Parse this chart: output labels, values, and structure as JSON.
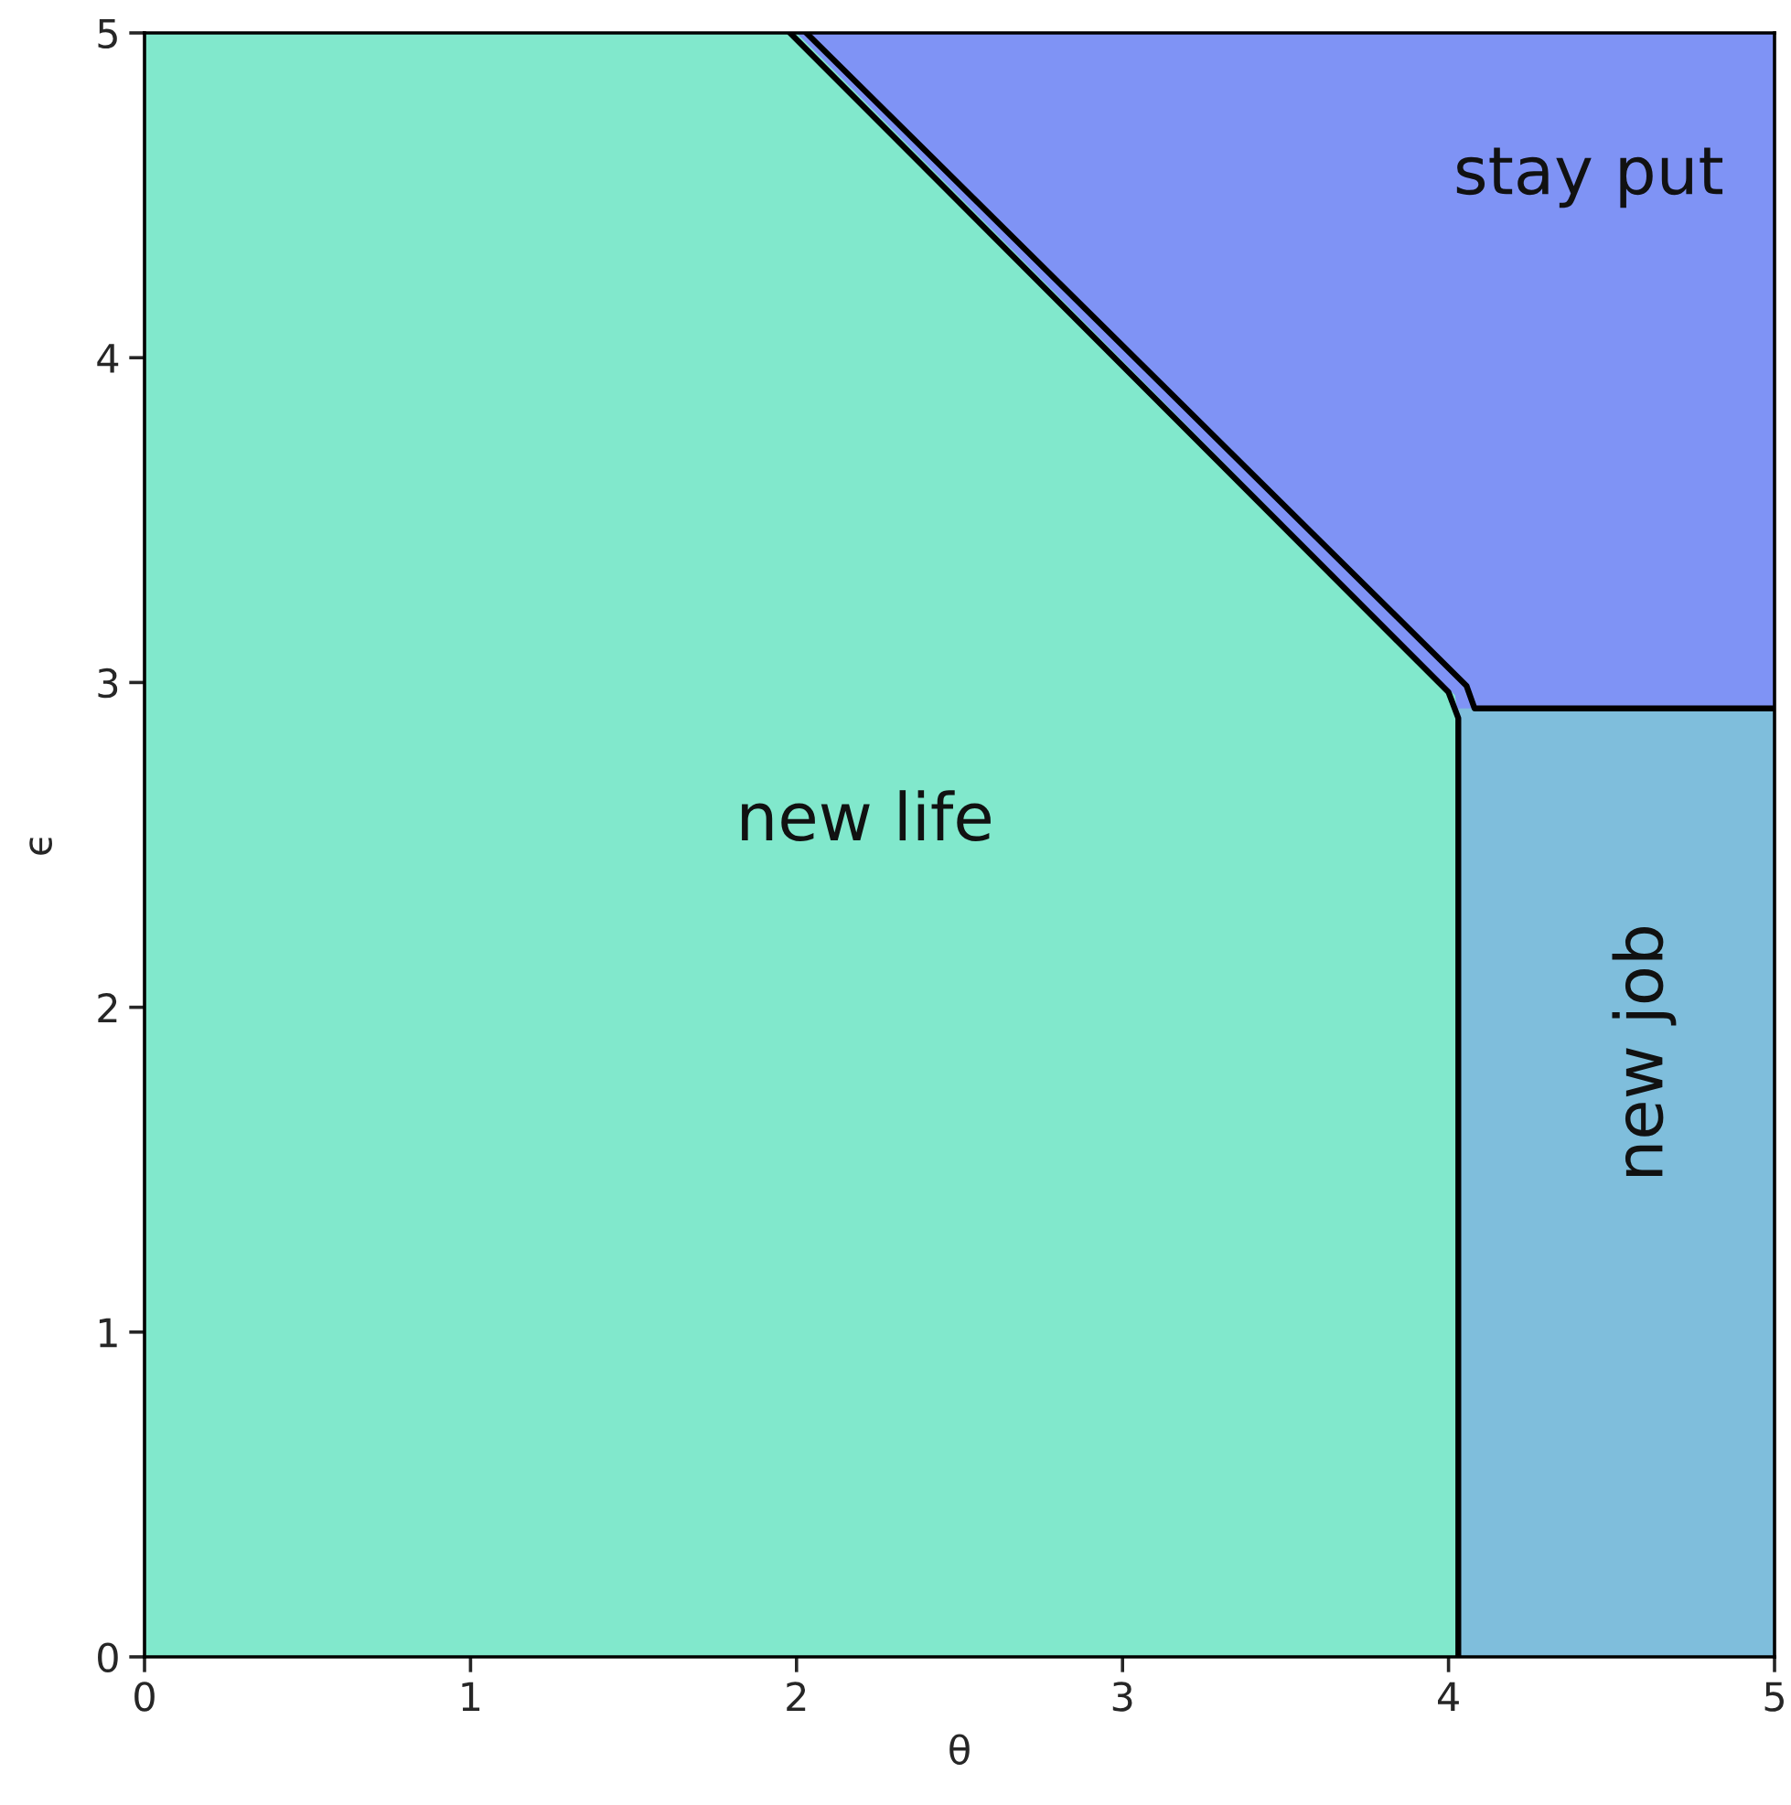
{
  "chart_data": {
    "type": "area",
    "xlabel": "θ",
    "ylabel": "ϵ",
    "xlim": [
      0,
      5
    ],
    "ylim": [
      0,
      5
    ],
    "xticks": [
      0,
      1,
      2,
      3,
      4,
      5
    ],
    "yticks": [
      0,
      1,
      2,
      3,
      4,
      5
    ],
    "series": [
      {
        "name": "stay put",
        "color": "#7f93f5",
        "x": [
          2.0,
          5
        ],
        "values": [
          5,
          5
        ]
      },
      {
        "name": "new life",
        "color": "#81e8cc",
        "x": [
          0,
          2.0,
          4.02,
          4.03
        ],
        "values": [
          5,
          5,
          2.96,
          2.89
        ]
      },
      {
        "name": "new job",
        "color": "#7fbedc",
        "x": [
          4.03,
          5
        ],
        "values": [
          2.92,
          2.92
        ]
      },
      {
        "type": "line",
        "color": "#000000",
        "x": [
          1.98,
          4.0,
          4.03,
          4.03
        ],
        "values": [
          5,
          2.97,
          2.89,
          0
        ]
      },
      {
        "type": "line",
        "color": "#000000",
        "x": [
          2.03,
          4.055,
          4.08,
          5
        ],
        "values": [
          5,
          2.99,
          2.92,
          2.92
        ]
      }
    ]
  }
}
